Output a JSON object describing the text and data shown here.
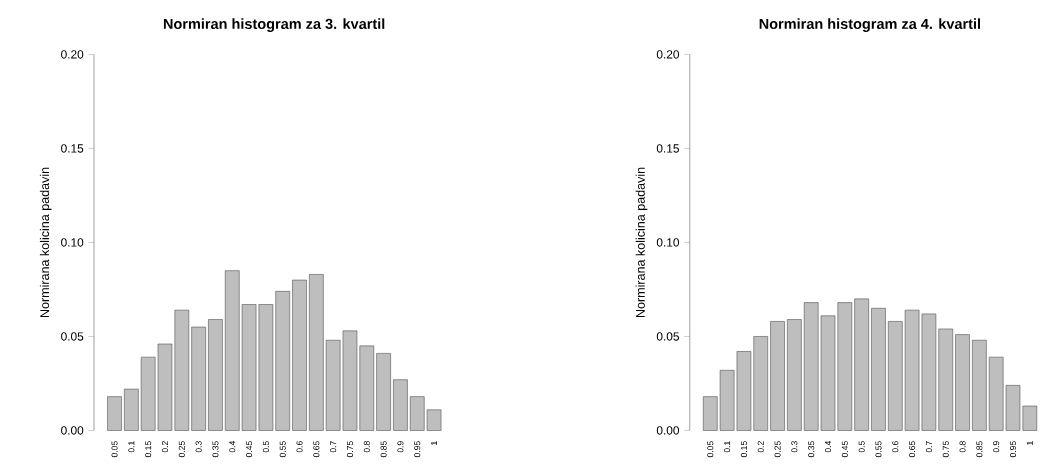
{
  "chart_data": [
    {
      "type": "bar",
      "title": "Normiran histogram za 3. kvartil",
      "ylabel": "Normirana kolicina padavin",
      "categories": [
        "0.05",
        "0.1",
        "0.15",
        "0.2",
        "0.25",
        "0.3",
        "0.35",
        "0.4",
        "0.45",
        "0.5",
        "0.55",
        "0.6",
        "0.65",
        "0.7",
        "0.75",
        "0.8",
        "0.85",
        "0.9",
        "0.95",
        "1"
      ],
      "values": [
        0.018,
        0.022,
        0.039,
        0.046,
        0.064,
        0.055,
        0.059,
        0.085,
        0.067,
        0.067,
        0.074,
        0.08,
        0.083,
        0.048,
        0.053,
        0.045,
        0.041,
        0.027,
        0.018,
        0.011
      ],
      "color": "#bebebe",
      "ylim": [
        0,
        0.2
      ],
      "yticks": [
        {
          "value": 0,
          "label": "0.00"
        },
        {
          "value": 0.05,
          "label": "0.05"
        },
        {
          "value": 0.1,
          "label": "0.10"
        },
        {
          "value": 0.15,
          "label": "0.15"
        },
        {
          "value": 0.2,
          "label": "0.20"
        }
      ],
      "grid": false
    },
    {
      "type": "bar",
      "title": "Normiran histogram za 4. kvartil",
      "ylabel": "Normirana kolicina padavin",
      "categories": [
        "0.05",
        "0.1",
        "0.15",
        "0.2",
        "0.25",
        "0.3",
        "0.35",
        "0.4",
        "0.45",
        "0.5",
        "0.55",
        "0.6",
        "0.65",
        "0.7",
        "0.75",
        "0.8",
        "0.85",
        "0.9",
        "0.95",
        "1"
      ],
      "values": [
        0.018,
        0.032,
        0.042,
        0.05,
        0.058,
        0.059,
        0.068,
        0.061,
        0.068,
        0.07,
        0.065,
        0.058,
        0.064,
        0.062,
        0.054,
        0.051,
        0.048,
        0.039,
        0.024,
        0.013
      ],
      "color": "#bebebe",
      "ylim": [
        0,
        0.2
      ],
      "yticks": [
        {
          "value": 0,
          "label": "0.00"
        },
        {
          "value": 0.05,
          "label": "0.05"
        },
        {
          "value": 0.1,
          "label": "0.10"
        },
        {
          "value": 0.15,
          "label": "0.15"
        },
        {
          "value": 0.2,
          "label": "0.20"
        }
      ],
      "grid": false
    }
  ]
}
